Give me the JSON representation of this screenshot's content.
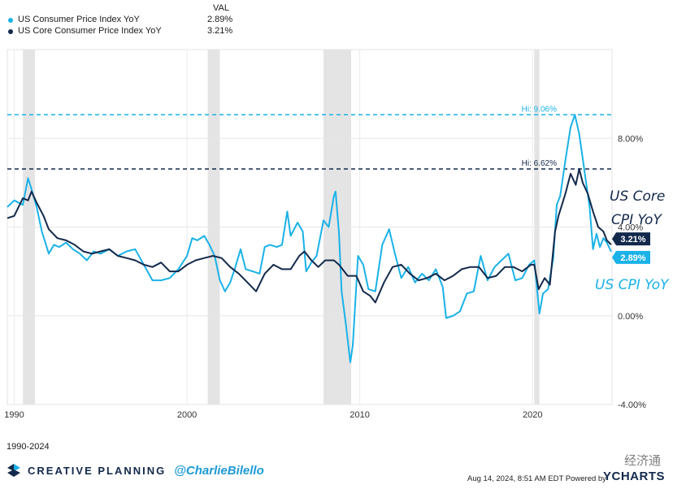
{
  "legend": {
    "header": "VAL",
    "items": [
      {
        "name": "US Consumer Price Index YoY",
        "value": "2.89%",
        "color": "#1ab2e8"
      },
      {
        "name": "US Core Consumer Price Index YoY",
        "value": "3.21%",
        "color": "#13294b"
      }
    ]
  },
  "range_label": "1990-2024",
  "branding": {
    "company": "CREATIVE PLANNING",
    "handle": "@CharlieBilello"
  },
  "footer": {
    "timestamp": "Aug 14, 2024, 8:51 AM EDT Powered by",
    "provider": "YCHARTS",
    "watermark": "经济通"
  },
  "chart_data": {
    "type": "line",
    "x_range": [
      1989.6,
      2024.6
    ],
    "ylim": [
      -4,
      12
    ],
    "y_ticks": [
      "8.00%",
      "4.00%",
      "0.00%",
      "-4.00%"
    ],
    "y_tick_values": [
      8,
      4,
      0,
      -4
    ],
    "x_ticks": [
      "1990",
      "2000",
      "2010",
      "2020"
    ],
    "x_tick_values": [
      1990,
      2000,
      2010,
      2020
    ],
    "grid": true,
    "recessions": [
      [
        1990.5,
        1991.2
      ],
      [
        2001.2,
        2001.9
      ],
      [
        2007.9,
        2009.5
      ],
      [
        2020.1,
        2020.4
      ]
    ],
    "hi_lines": [
      {
        "label": "Hi: 9.06%",
        "value": 9.06,
        "color": "#1ab2e8"
      },
      {
        "label": "Hi: 6.62%",
        "value": 6.62,
        "color": "#13294b"
      }
    ],
    "annotations": [
      {
        "text": "US Core",
        "color": "#13294b"
      },
      {
        "text": "CPI YoY",
        "color": "#13294b"
      },
      {
        "text": "US CPI YoY",
        "color": "#1ab2e8"
      }
    ],
    "end_labels": [
      {
        "text": "3.21%",
        "value": 3.21,
        "color": "#13294b"
      },
      {
        "text": "2.89%",
        "value": 2.89,
        "color": "#1ab2e8"
      }
    ],
    "series": [
      {
        "name": "US Consumer Price Index YoY",
        "color": "#1ab2e8",
        "points": [
          [
            1989.6,
            4.9
          ],
          [
            1990.0,
            5.2
          ],
          [
            1990.5,
            5.0
          ],
          [
            1990.8,
            6.2
          ],
          [
            1991.0,
            5.7
          ],
          [
            1991.3,
            4.9
          ],
          [
            1991.6,
            3.8
          ],
          [
            1992.0,
            2.8
          ],
          [
            1992.3,
            3.2
          ],
          [
            1992.6,
            3.1
          ],
          [
            1993.0,
            3.3
          ],
          [
            1993.4,
            3.0
          ],
          [
            1993.8,
            2.8
          ],
          [
            1994.2,
            2.5
          ],
          [
            1994.6,
            2.9
          ],
          [
            1995.0,
            2.8
          ],
          [
            1995.5,
            3.0
          ],
          [
            1996.0,
            2.7
          ],
          [
            1996.5,
            2.9
          ],
          [
            1997.0,
            3.0
          ],
          [
            1997.5,
            2.3
          ],
          [
            1998.0,
            1.6
          ],
          [
            1998.5,
            1.6
          ],
          [
            1999.0,
            1.7
          ],
          [
            1999.5,
            2.1
          ],
          [
            2000.0,
            2.7
          ],
          [
            2000.3,
            3.5
          ],
          [
            2000.6,
            3.4
          ],
          [
            2001.0,
            3.6
          ],
          [
            2001.3,
            3.2
          ],
          [
            2001.6,
            2.7
          ],
          [
            2001.9,
            1.6
          ],
          [
            2002.2,
            1.1
          ],
          [
            2002.5,
            1.5
          ],
          [
            2002.8,
            2.2
          ],
          [
            2003.1,
            3.0
          ],
          [
            2003.4,
            2.1
          ],
          [
            2003.8,
            2.0
          ],
          [
            2004.2,
            1.9
          ],
          [
            2004.5,
            3.1
          ],
          [
            2004.8,
            3.2
          ],
          [
            2005.2,
            3.1
          ],
          [
            2005.5,
            3.2
          ],
          [
            2005.8,
            4.7
          ],
          [
            2006.0,
            3.6
          ],
          [
            2006.4,
            4.2
          ],
          [
            2006.7,
            3.8
          ],
          [
            2006.9,
            2.0
          ],
          [
            2007.2,
            2.4
          ],
          [
            2007.5,
            2.7
          ],
          [
            2007.9,
            4.3
          ],
          [
            2008.2,
            4.0
          ],
          [
            2008.5,
            5.4
          ],
          [
            2008.6,
            5.6
          ],
          [
            2008.8,
            3.7
          ],
          [
            2008.95,
            1.1
          ],
          [
            2009.2,
            -0.4
          ],
          [
            2009.45,
            -2.1
          ],
          [
            2009.6,
            -1.3
          ],
          [
            2009.9,
            2.7
          ],
          [
            2010.2,
            2.3
          ],
          [
            2010.5,
            1.2
          ],
          [
            2010.9,
            1.1
          ],
          [
            2011.3,
            3.2
          ],
          [
            2011.7,
            3.9
          ],
          [
            2012.0,
            2.9
          ],
          [
            2012.4,
            1.7
          ],
          [
            2012.8,
            2.2
          ],
          [
            2013.2,
            1.5
          ],
          [
            2013.6,
            1.9
          ],
          [
            2014.0,
            1.6
          ],
          [
            2014.4,
            2.1
          ],
          [
            2014.8,
            1.3
          ],
          [
            2015.0,
            -0.1
          ],
          [
            2015.4,
            0.0
          ],
          [
            2015.8,
            0.2
          ],
          [
            2016.2,
            1.0
          ],
          [
            2016.6,
            1.1
          ],
          [
            2017.0,
            2.7
          ],
          [
            2017.4,
            1.6
          ],
          [
            2017.8,
            2.2
          ],
          [
            2018.2,
            2.5
          ],
          [
            2018.6,
            2.8
          ],
          [
            2019.0,
            1.6
          ],
          [
            2019.4,
            1.7
          ],
          [
            2019.8,
            2.3
          ],
          [
            2020.1,
            2.5
          ],
          [
            2020.4,
            0.1
          ],
          [
            2020.6,
            1.0
          ],
          [
            2020.9,
            1.2
          ],
          [
            2021.2,
            2.6
          ],
          [
            2021.4,
            5.0
          ],
          [
            2021.6,
            5.4
          ],
          [
            2021.9,
            7.0
          ],
          [
            2022.2,
            8.5
          ],
          [
            2022.45,
            9.06
          ],
          [
            2022.7,
            8.2
          ],
          [
            2022.9,
            7.1
          ],
          [
            2023.1,
            6.0
          ],
          [
            2023.3,
            4.9
          ],
          [
            2023.5,
            3.0
          ],
          [
            2023.7,
            3.7
          ],
          [
            2023.9,
            3.1
          ],
          [
            2024.1,
            3.5
          ],
          [
            2024.3,
            3.3
          ],
          [
            2024.55,
            2.89
          ]
        ]
      },
      {
        "name": "US Core Consumer Price Index YoY",
        "color": "#13294b",
        "points": [
          [
            1989.6,
            4.4
          ],
          [
            1990.0,
            4.5
          ],
          [
            1990.5,
            5.3
          ],
          [
            1990.8,
            5.2
          ],
          [
            1991.0,
            5.6
          ],
          [
            1991.3,
            5.1
          ],
          [
            1991.7,
            4.5
          ],
          [
            1992.0,
            3.9
          ],
          [
            1992.5,
            3.5
          ],
          [
            1993.0,
            3.4
          ],
          [
            1993.5,
            3.2
          ],
          [
            1994.0,
            2.9
          ],
          [
            1994.5,
            2.8
          ],
          [
            1995.0,
            2.9
          ],
          [
            1995.5,
            3.0
          ],
          [
            1996.0,
            2.7
          ],
          [
            1996.5,
            2.6
          ],
          [
            1997.0,
            2.5
          ],
          [
            1997.5,
            2.3
          ],
          [
            1998.0,
            2.2
          ],
          [
            1998.5,
            2.4
          ],
          [
            1999.0,
            2.0
          ],
          [
            1999.5,
            2.0
          ],
          [
            2000.0,
            2.3
          ],
          [
            2000.5,
            2.5
          ],
          [
            2001.0,
            2.6
          ],
          [
            2001.5,
            2.7
          ],
          [
            2002.0,
            2.6
          ],
          [
            2002.5,
            2.2
          ],
          [
            2003.0,
            1.9
          ],
          [
            2003.5,
            1.5
          ],
          [
            2004.0,
            1.1
          ],
          [
            2004.5,
            1.9
          ],
          [
            2005.0,
            2.3
          ],
          [
            2005.5,
            2.1
          ],
          [
            2006.0,
            2.1
          ],
          [
            2006.5,
            2.7
          ],
          [
            2006.8,
            2.9
          ],
          [
            2007.2,
            2.5
          ],
          [
            2007.6,
            2.2
          ],
          [
            2008.0,
            2.5
          ],
          [
            2008.5,
            2.5
          ],
          [
            2008.8,
            2.3
          ],
          [
            2009.3,
            1.8
          ],
          [
            2009.8,
            1.8
          ],
          [
            2010.2,
            1.1
          ],
          [
            2010.6,
            0.9
          ],
          [
            2010.9,
            0.6
          ],
          [
            2011.4,
            1.5
          ],
          [
            2011.9,
            2.2
          ],
          [
            2012.4,
            2.3
          ],
          [
            2012.9,
            1.9
          ],
          [
            2013.4,
            1.6
          ],
          [
            2013.9,
            1.7
          ],
          [
            2014.4,
            1.9
          ],
          [
            2014.9,
            1.6
          ],
          [
            2015.4,
            1.8
          ],
          [
            2015.9,
            2.1
          ],
          [
            2016.4,
            2.2
          ],
          [
            2016.9,
            2.2
          ],
          [
            2017.4,
            1.7
          ],
          [
            2017.9,
            1.8
          ],
          [
            2018.4,
            2.2
          ],
          [
            2018.9,
            2.2
          ],
          [
            2019.4,
            2.0
          ],
          [
            2019.9,
            2.3
          ],
          [
            2020.1,
            2.3
          ],
          [
            2020.35,
            1.2
          ],
          [
            2020.7,
            1.7
          ],
          [
            2021.0,
            1.4
          ],
          [
            2021.3,
            3.8
          ],
          [
            2021.5,
            4.5
          ],
          [
            2021.9,
            5.5
          ],
          [
            2022.2,
            6.4
          ],
          [
            2022.5,
            5.9
          ],
          [
            2022.7,
            6.62
          ],
          [
            2022.9,
            6.0
          ],
          [
            2023.2,
            5.5
          ],
          [
            2023.5,
            4.7
          ],
          [
            2023.8,
            4.0
          ],
          [
            2024.1,
            3.8
          ],
          [
            2024.3,
            3.4
          ],
          [
            2024.55,
            3.21
          ]
        ]
      }
    ]
  }
}
